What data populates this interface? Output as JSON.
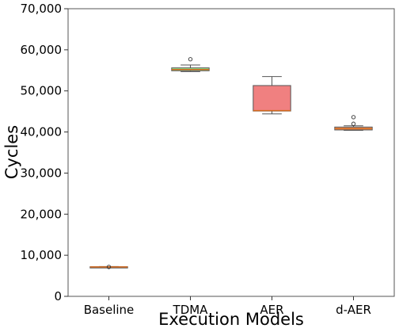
{
  "chart_data": {
    "type": "box",
    "xlabel": "Execution Models",
    "ylabel": "Cycles",
    "ylim": [
      0,
      70000
    ],
    "yticks": [
      0,
      10000,
      20000,
      30000,
      40000,
      50000,
      60000,
      70000
    ],
    "ytick_labels": [
      "0",
      "10,000",
      "20,000",
      "30,000",
      "40,000",
      "50,000",
      "60,000",
      "70,000"
    ],
    "categories": [
      "Baseline",
      "TDMA",
      "AER",
      "d-AER"
    ],
    "grid": false,
    "boxes": [
      {
        "category": "Baseline",
        "color": "#f4a460",
        "whisker_low": 7050,
        "q1": 7100,
        "median": 7150,
        "q3": 7200,
        "whisker_high": 7250,
        "outliers": [
          7150
        ]
      },
      {
        "category": "TDMA",
        "color": "#90ee90",
        "whisker_low": 54700,
        "q1": 54900,
        "median": 55200,
        "q3": 55600,
        "whisker_high": 56300,
        "outliers": [
          57700
        ]
      },
      {
        "category": "AER",
        "color": "#f08080",
        "whisker_low": 44400,
        "q1": 45100,
        "median": 45200,
        "q3": 51300,
        "whisker_high": 53500,
        "outliers": []
      },
      {
        "category": "d-AER",
        "color": "#f4a070",
        "whisker_low": 40400,
        "q1": 40500,
        "median": 40800,
        "q3": 41200,
        "whisker_high": 41500,
        "outliers": [
          42000,
          43600
        ]
      }
    ]
  }
}
